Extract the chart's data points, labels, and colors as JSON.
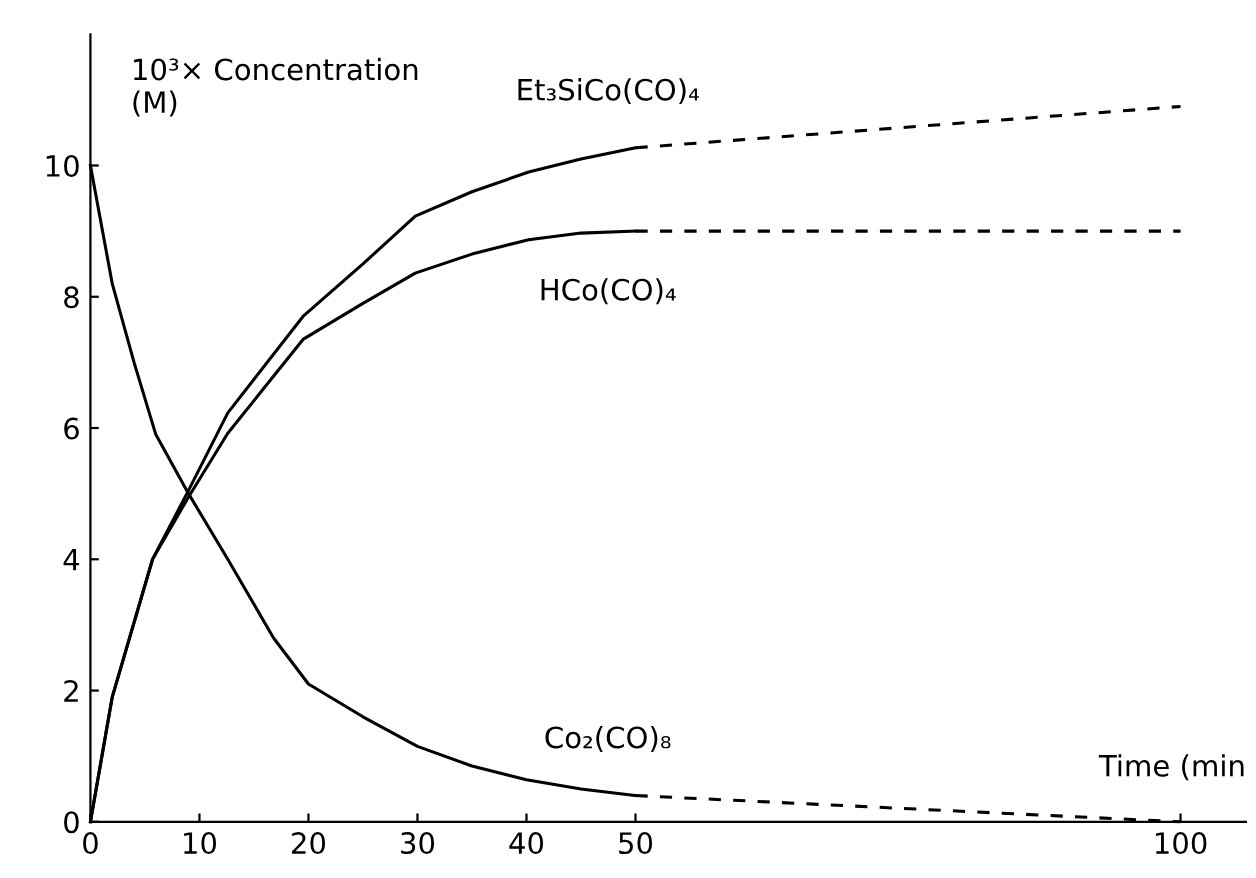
{
  "chart_data": {
    "type": "line",
    "ylabel": "10³× Concentration\n(M)",
    "xlabel": "Time (min",
    "xlim": [
      0,
      106
    ],
    "xticks": [
      0,
      10,
      20,
      30,
      40,
      50,
      100
    ],
    "ylim": [
      0,
      12
    ],
    "yticks": [
      0,
      2,
      4,
      6,
      8,
      10
    ],
    "grid": false,
    "legend": false,
    "marker": "none",
    "line_style": "solid",
    "series": [
      {
        "name": "Et₃SiCo(CO)₄",
        "color": "#000000",
        "x": [
          0,
          2,
          5.7,
          9,
          12.6,
          19.5,
          25,
          29.8,
          35,
          40.2,
          45,
          50
        ],
        "values": [
          0,
          1.9,
          4.0,
          5.05,
          6.23,
          7.7,
          8.5,
          9.23,
          9.6,
          9.9,
          10.1,
          10.27
        ]
      },
      {
        "name": "HCo(CO)₄",
        "color": "#000000",
        "x": [
          0,
          2,
          5.7,
          9,
          12.6,
          19.5,
          25,
          29.8,
          35,
          40.2,
          45,
          50
        ],
        "values": [
          0,
          1.9,
          4.0,
          4.95,
          5.92,
          7.35,
          7.9,
          8.36,
          8.65,
          8.87,
          8.97,
          9.0
        ]
      },
      {
        "name": "Co₂(CO)₈",
        "color": "#000000",
        "x": [
          0,
          2,
          4,
          6,
          9,
          12.6,
          16.8,
          20,
          25,
          30,
          35,
          40,
          45,
          50
        ],
        "values": [
          10,
          8.2,
          7.0,
          5.9,
          5.0,
          4.0,
          2.8,
          2.1,
          1.6,
          1.15,
          0.85,
          0.64,
          0.5,
          0.4
        ]
      },
      {
        "color": "#000000",
        "line_style": "dashed",
        "x": [
          50,
          100
        ],
        "values": [
          10.27,
          10.9
        ]
      },
      {
        "color": "#000000",
        "line_style": "dashed",
        "x": [
          50,
          100
        ],
        "values": [
          9.0,
          9.0
        ]
      },
      {
        "color": "#000000",
        "line_style": "dashed",
        "x": [
          50,
          100
        ],
        "values": [
          0.4,
          0
        ]
      }
    ]
  }
}
